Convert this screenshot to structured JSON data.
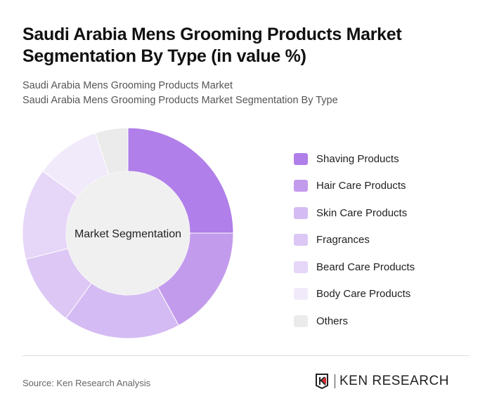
{
  "title": "Saudi Arabia Mens Grooming Products Market Segmentation By Type (in value %)",
  "subtitle_1": "Saudi Arabia Mens Grooming Products Market",
  "subtitle_2": "Saudi Arabia Mens Grooming Products Market Segmentation By Type",
  "source": "Source: Ken Research Analysis",
  "logo_text": "KEN RESEARCH",
  "chart_data": {
    "type": "pie",
    "variant": "donut",
    "center_label": "Market Segmentation",
    "legend_position": "right",
    "categories": [
      "Shaving Products",
      "Hair Care Products",
      "Skin Care Products",
      "Fragrances",
      "Beard Care Products",
      "Body Care Products",
      "Others"
    ],
    "values": [
      25,
      17,
      18,
      11,
      14,
      10,
      5
    ],
    "colors": [
      "#b07fe9",
      "#c39bec",
      "#d5bbf3",
      "#dcc7f5",
      "#e6d6f8",
      "#f1eafb",
      "#ebebeb"
    ]
  }
}
